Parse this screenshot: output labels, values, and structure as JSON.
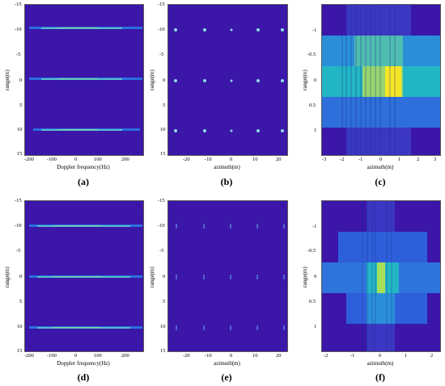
{
  "panels": [
    {
      "id": "a",
      "caption": "(a)",
      "xlabel": "Doppler frequency(Hz)",
      "ylabel": "range(m)",
      "xticks": [
        "-200",
        "-100",
        "0",
        "100",
        "200"
      ],
      "yticks": [
        "-15",
        "-10",
        "-5",
        "0",
        "5",
        "10",
        "15"
      ]
    },
    {
      "id": "b",
      "caption": "(b)",
      "xlabel": "azimuth(m)",
      "ylabel": "range(m)",
      "xticks": [
        "-20",
        "-10",
        "0",
        "10",
        "20"
      ],
      "yticks": [
        "-15",
        "-10",
        "-5",
        "0",
        "5",
        "10",
        "15"
      ]
    },
    {
      "id": "c",
      "caption": "(c)",
      "xlabel": "azimuth(m)",
      "ylabel": "range(m)",
      "xticks": [
        "-3",
        "-2",
        "-1",
        "0",
        "1",
        "2",
        "3"
      ],
      "yticks": [
        "-1",
        "-0.5",
        "0",
        "0.5",
        "1"
      ]
    },
    {
      "id": "d",
      "caption": "(d)",
      "xlabel": "Doppler frequency(Hz)",
      "ylabel": "range(m)",
      "xticks": [
        "-200",
        "-100",
        "0",
        "100",
        "200"
      ],
      "yticks": [
        "-15",
        "-10",
        "-5",
        "0",
        "5",
        "10",
        "15"
      ]
    },
    {
      "id": "e",
      "caption": "(e)",
      "xlabel": "azimuth(m)",
      "ylabel": "range(m)",
      "xticks": [
        "-20",
        "-10",
        "0",
        "10",
        "20"
      ],
      "yticks": [
        "-15",
        "-10",
        "-5",
        "0",
        "5",
        "10",
        "15"
      ]
    },
    {
      "id": "f",
      "caption": "(f)",
      "xlabel": "azimuth(m)",
      "ylabel": "range(m)",
      "xticks": [
        "-2",
        "-1",
        "0",
        "1",
        "2"
      ],
      "yticks": [
        "-1",
        "-0.5",
        "0",
        "0.5",
        "1"
      ]
    }
  ],
  "colors": {
    "background": "#3b16a8",
    "low": "#2f6bdc",
    "mid": "#21b3c4",
    "high": "#f5e625"
  }
}
